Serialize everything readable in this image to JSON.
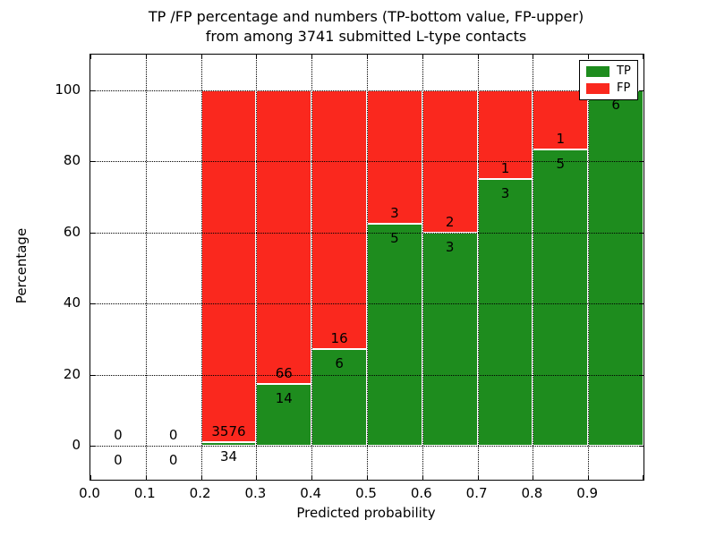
{
  "chart_data": {
    "type": "bar",
    "stacked": true,
    "title_line1": "TP /FP percentage and numbers (TP-bottom value, FP-upper)",
    "title_line2": "from among 3741 submitted L-type contacts",
    "xlabel": "Predicted probability",
    "ylabel": "Percentage",
    "total_contacts": 3741,
    "x_tick_labels": [
      "0.0",
      "0.1",
      "0.2",
      "0.3",
      "0.4",
      "0.5",
      "0.6",
      "0.7",
      "0.8",
      "0.9"
    ],
    "y_ticks": [
      0,
      20,
      40,
      60,
      80,
      100
    ],
    "x_range": [
      0.0,
      1.0
    ],
    "bin_width": 0.1,
    "series": [
      {
        "name": "TP",
        "color": "#1e8c1e",
        "values": [
          0,
          0,
          34,
          14,
          6,
          5,
          3,
          3,
          5,
          6
        ]
      },
      {
        "name": "FP",
        "color": "#fa281e",
        "values": [
          0,
          0,
          3576,
          66,
          16,
          3,
          2,
          1,
          1,
          0
        ]
      }
    ],
    "tp_percent_of_bin": [
      null,
      null,
      0.9,
      17.5,
      27.3,
      62.5,
      60.0,
      75.0,
      83.3,
      100.0
    ],
    "legend": {
      "position": "upper right",
      "entries": [
        "TP",
        "FP"
      ]
    },
    "grid": "dotted",
    "colors": {
      "tp_green": "#1e8c1e",
      "fp_red": "#fa281e",
      "frame": "#000000",
      "background": "#ffffff"
    }
  }
}
